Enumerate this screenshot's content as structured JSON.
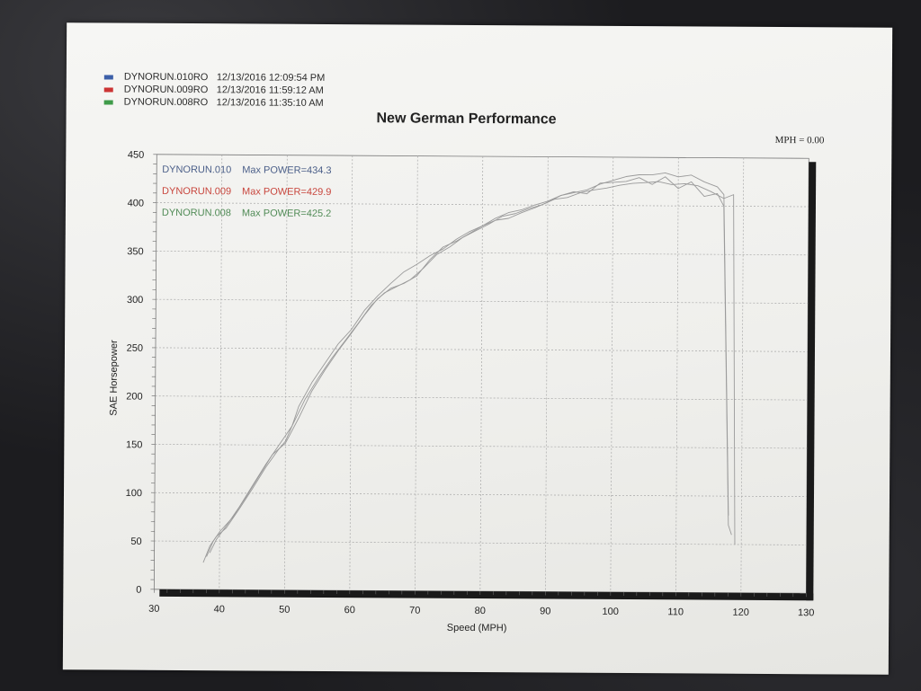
{
  "legend": [
    {
      "run": "DYNORUN.010RO",
      "date": "12/13/2016 12:09:54 PM",
      "color": "#3c5fa8"
    },
    {
      "run": "DYNORUN.009RO",
      "date": "12/13/2016 11:59:12 AM",
      "color": "#cc3434"
    },
    {
      "run": "DYNORUN.008RO",
      "date": "12/13/2016 11:35:10 AM",
      "color": "#3f9b4a"
    }
  ],
  "mph_readout": "MPH = 0.00",
  "chart_data": {
    "type": "line",
    "title": "New German Performance",
    "xlabel": "Speed (MPH)",
    "ylabel": "SAE Horsepower",
    "xlim": [
      30,
      130
    ],
    "ylim": [
      0,
      450
    ],
    "xticks": [
      30,
      40,
      50,
      60,
      70,
      80,
      90,
      100,
      110,
      120,
      130
    ],
    "yticks": [
      0,
      50,
      100,
      150,
      200,
      250,
      300,
      350,
      400,
      450
    ],
    "grid": true,
    "line_color": "#9a9a9a",
    "annotations": [
      {
        "run": "DYNORUN.010",
        "label": "Max POWER=434.3",
        "color": "#4a5e88"
      },
      {
        "run": "DYNORUN.009",
        "label": "Max POWER=429.9",
        "color": "#c8453c"
      },
      {
        "run": "DYNORUN.008",
        "label": "Max POWER=425.2",
        "color": "#4f8a55"
      }
    ],
    "series": [
      {
        "x": [
          37.5,
          38.5,
          39.5,
          41,
          43,
          45,
          47,
          49,
          50,
          51,
          52,
          54,
          56,
          58,
          60,
          62,
          64,
          66,
          68,
          70,
          72,
          74,
          76,
          78,
          80,
          82,
          84,
          86,
          88,
          90,
          92,
          94,
          96,
          98,
          100,
          102,
          104,
          106,
          108,
          110,
          112,
          114,
          116,
          117,
          118
        ],
        "y": [
          28,
          45,
          55,
          64,
          84,
          105,
          127,
          146,
          154,
          170,
          190,
          215,
          235,
          255,
          270,
          290,
          305,
          318,
          330,
          338,
          347,
          354,
          364,
          372,
          378,
          386,
          392,
          395,
          400,
          404,
          410,
          413,
          416,
          422,
          426,
          430,
          432,
          432,
          434,
          430,
          432,
          425,
          420,
          412,
          80
        ]
      },
      {
        "x": [
          38,
          39,
          40,
          42,
          44,
          46,
          48,
          50,
          52,
          54,
          56,
          58,
          60,
          62,
          64,
          66,
          68,
          70,
          72,
          74,
          76,
          78,
          80,
          82,
          84,
          86,
          88,
          90,
          92,
          94,
          96,
          98,
          100,
          102,
          104,
          106,
          108,
          110,
          112,
          114,
          116,
          117,
          118,
          118.5
        ],
        "y": [
          34,
          50,
          60,
          75,
          96,
          118,
          140,
          152,
          178,
          206,
          228,
          248,
          266,
          285,
          302,
          313,
          318,
          326,
          343,
          356,
          362,
          370,
          378,
          384,
          386,
          392,
          397,
          403,
          410,
          414,
          412,
          423,
          424,
          425,
          429,
          422,
          430,
          418,
          425,
          410,
          413,
          400,
          70,
          60
        ]
      },
      {
        "x": [
          38.5,
          39.5,
          41,
          43,
          45,
          47,
          49,
          51,
          53,
          55,
          57,
          59,
          61,
          63,
          65,
          67,
          69,
          71,
          73,
          75,
          77,
          79,
          81,
          83,
          85,
          87,
          89,
          91,
          93,
          95,
          97,
          99,
          101,
          103,
          105,
          107,
          109,
          111,
          113,
          115,
          117,
          118.5,
          119
        ],
        "y": [
          38,
          52,
          66,
          86,
          108,
          130,
          150,
          170,
          198,
          220,
          240,
          258,
          276,
          295,
          308,
          315,
          322,
          334,
          348,
          356,
          366,
          373,
          380,
          388,
          391,
          396,
          400,
          406,
          408,
          413,
          416,
          418,
          421,
          423,
          424,
          425,
          422,
          423,
          421,
          415,
          408,
          412,
          50
        ]
      }
    ]
  }
}
